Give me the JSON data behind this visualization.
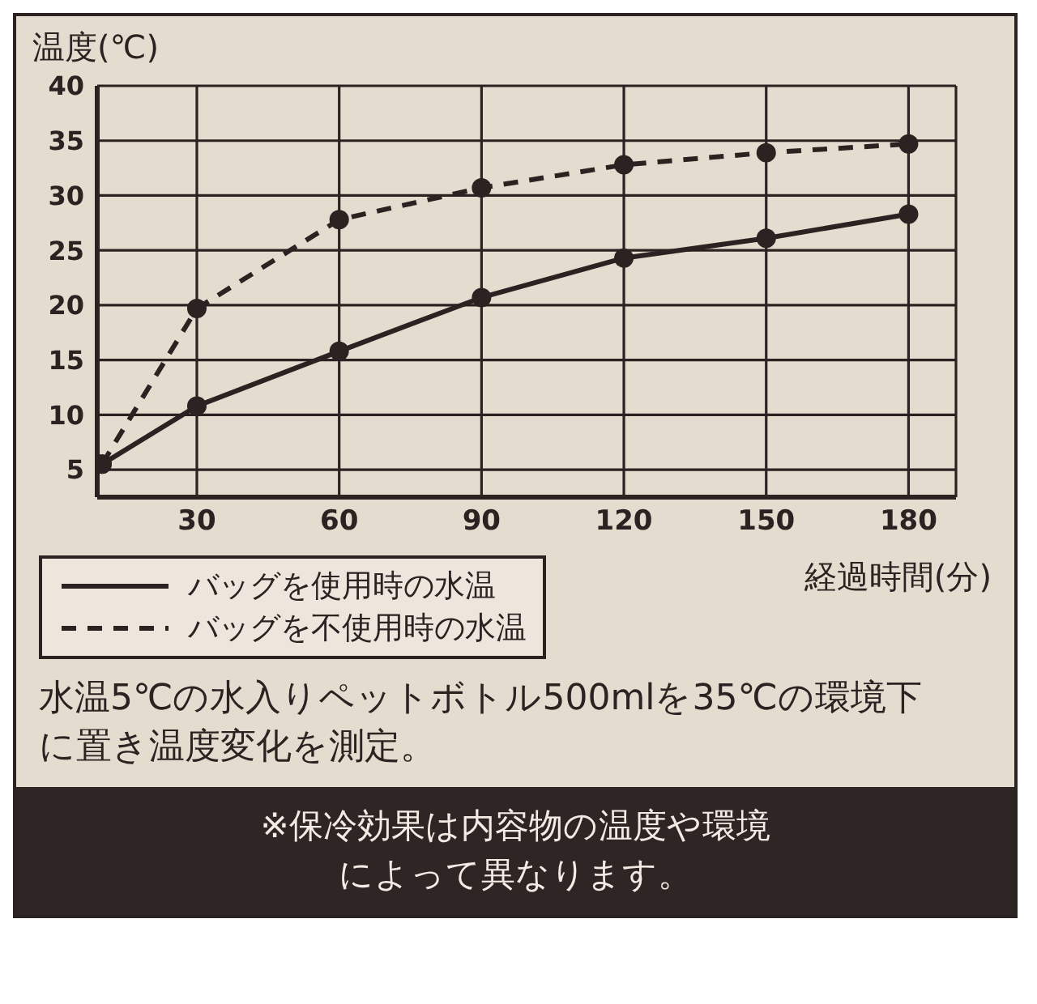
{
  "chart_data": {
    "type": "line",
    "ylabel": "温度(℃)",
    "xlabel": "経過時間(分)",
    "x": [
      10,
      30,
      60,
      90,
      120,
      150,
      180
    ],
    "series": [
      {
        "name": "バッグを使用時の水温",
        "color": "#2b2222",
        "line_style": "solid",
        "values": [
          5.5,
          10.8,
          15.8,
          20.7,
          24.3,
          26.1,
          28.3
        ]
      },
      {
        "name": "バッグを不使用時の水温",
        "color": "#2b2222",
        "line_style": "dashed",
        "values": [
          5.5,
          19.7,
          27.8,
          30.7,
          32.8,
          33.9,
          34.7
        ]
      }
    ],
    "xlim": [
      9,
      190
    ],
    "xticks": [
      30,
      60,
      90,
      120,
      150,
      180
    ],
    "ylim": [
      2.5,
      40
    ],
    "yticks": [
      5,
      10,
      15,
      20,
      25,
      30,
      35,
      40
    ],
    "grid": true,
    "marker": "circle",
    "legend": "bottom left",
    "annotations": [
      "水温5℃の水入りペットボトル500mlを35℃の環境下に置き温度変化を測定。",
      "※保冷効果は内容物の温度や環境によって異なります。"
    ]
  }
}
